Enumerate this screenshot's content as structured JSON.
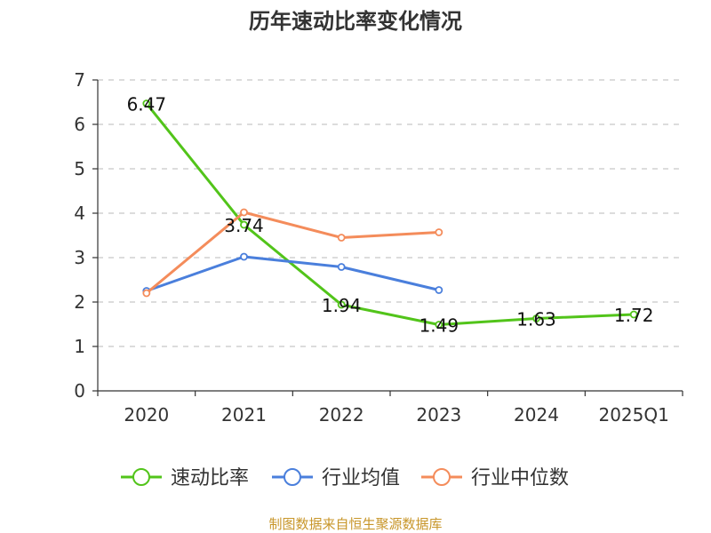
{
  "chart_data": {
    "type": "line",
    "title": "历年速动比率变化情况",
    "categories": [
      "2020",
      "2021",
      "2022",
      "2023",
      "2024",
      "2025Q1"
    ],
    "ylim": [
      0,
      7
    ],
    "yticks": [
      0,
      1,
      2,
      3,
      4,
      5,
      6,
      7
    ],
    "grid": true,
    "legend_position": "bottom",
    "series": [
      {
        "name": "速动比率",
        "color": "#52c41a",
        "values": [
          6.47,
          3.74,
          1.94,
          1.49,
          1.63,
          1.72
        ],
        "labels": [
          "6.47",
          "3.74",
          "1.94",
          "1.49",
          "1.63",
          "1.72"
        ]
      },
      {
        "name": "行业均值",
        "color": "#4a7fdc",
        "values": [
          2.25,
          3.02,
          2.79,
          2.27,
          null,
          null
        ]
      },
      {
        "name": "行业中位数",
        "color": "#f48c5b",
        "values": [
          2.2,
          4.02,
          3.45,
          3.57,
          null,
          null
        ]
      }
    ],
    "source": "制图数据来自恒生聚源数据库"
  }
}
